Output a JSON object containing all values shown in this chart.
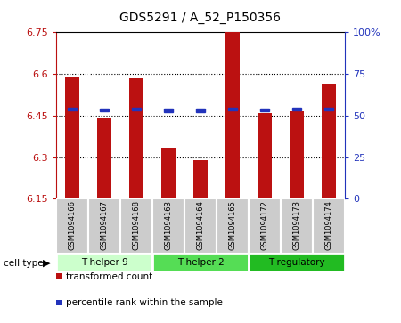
{
  "title": "GDS5291 / A_52_P150356",
  "samples": [
    "GSM1094166",
    "GSM1094167",
    "GSM1094168",
    "GSM1094163",
    "GSM1094164",
    "GSM1094165",
    "GSM1094172",
    "GSM1094173",
    "GSM1094174"
  ],
  "bar_values": [
    6.59,
    6.44,
    6.585,
    6.335,
    6.29,
    6.75,
    6.46,
    6.465,
    6.565
  ],
  "percentile_values": [
    6.473,
    6.47,
    6.473,
    6.469,
    6.469,
    6.473,
    6.47,
    6.473,
    6.473
  ],
  "ymin": 6.15,
  "ymax": 6.75,
  "yticks": [
    6.15,
    6.3,
    6.45,
    6.6,
    6.75
  ],
  "ytick_labels": [
    "6.15",
    "6.3",
    "6.45",
    "6.6",
    "6.75"
  ],
  "right_yticks": [
    0,
    25,
    50,
    75,
    100
  ],
  "right_ytick_labels": [
    "0",
    "25",
    "50",
    "75",
    "100%"
  ],
  "bar_color": "#bb1111",
  "blue_color": "#2233bb",
  "cell_types": [
    {
      "label": "T helper 9",
      "indices": [
        0,
        1,
        2
      ],
      "color": "#ccffcc"
    },
    {
      "label": "T helper 2",
      "indices": [
        3,
        4,
        5
      ],
      "color": "#55dd55"
    },
    {
      "label": "T regulatory",
      "indices": [
        6,
        7,
        8
      ],
      "color": "#22bb22"
    }
  ],
  "cell_type_label": "cell type",
  "legend_items": [
    {
      "label": "transformed count",
      "color": "#bb1111"
    },
    {
      "label": "percentile rank within the sample",
      "color": "#2233bb"
    }
  ],
  "title_fontsize": 10,
  "tick_fontsize": 8,
  "label_fontsize": 7,
  "legend_fontsize": 7.5
}
